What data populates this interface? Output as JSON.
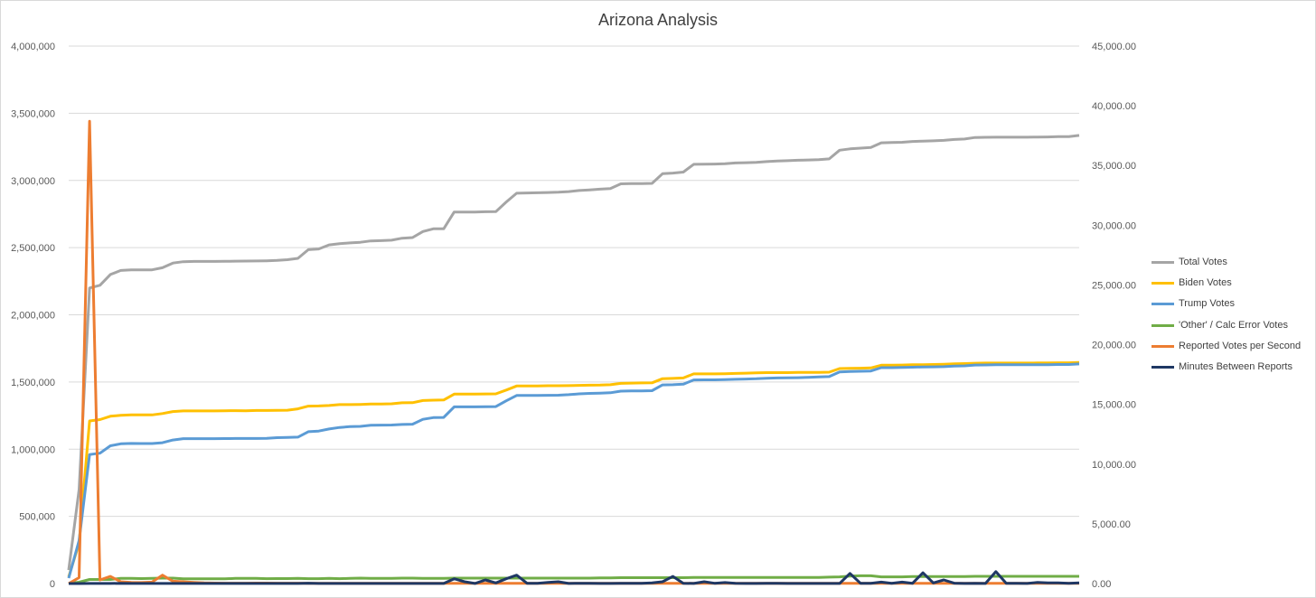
{
  "chart_data": {
    "type": "line",
    "title": "Arizona Analysis",
    "xlabel": "",
    "ylabel": "",
    "y_left": {
      "ylim": [
        0,
        4000000
      ],
      "ticks": [
        "0",
        "500,000",
        "1,000,000",
        "1,500,000",
        "2,000,000",
        "2,500,000",
        "3,000,000",
        "3,500,000",
        "4,000,000"
      ]
    },
    "y_right": {
      "ylim": [
        0,
        45000
      ],
      "ticks": [
        "0.00",
        "5,000.00",
        "10,000.00",
        "15,000.00",
        "20,000.00",
        "25,000.00",
        "30,000.00",
        "35,000.00",
        "40,000.00",
        "45,000.00"
      ]
    },
    "grid": true,
    "legend_position": "right",
    "n_points": 98,
    "series": [
      {
        "name": "Total Votes",
        "axis": "left",
        "color": "#a5a5a5",
        "values": [
          100000,
          700000,
          2200000,
          2220000,
          2300000,
          2330000,
          2335000,
          2335000,
          2335000,
          2350000,
          2385000,
          2395000,
          2397000,
          2397000,
          2397000,
          2398000,
          2399000,
          2400000,
          2401000,
          2402000,
          2405000,
          2410000,
          2420000,
          2485000,
          2490000,
          2520000,
          2530000,
          2535000,
          2540000,
          2550000,
          2552000,
          2555000,
          2570000,
          2575000,
          2620000,
          2640000,
          2640000,
          2765000,
          2765000,
          2765000,
          2767000,
          2768000,
          2840000,
          2905000,
          2907000,
          2908000,
          2910000,
          2912000,
          2917000,
          2925000,
          2930000,
          2935000,
          2940000,
          2975000,
          2976000,
          2977000,
          2978000,
          3050000,
          3055000,
          3062000,
          3120000,
          3121000,
          3122000,
          3125000,
          3130000,
          3132000,
          3135000,
          3140000,
          3145000,
          3147000,
          3150000,
          3152000,
          3155000,
          3160000,
          3225000,
          3235000,
          3240000,
          3245000,
          3280000,
          3282000,
          3284000,
          3290000,
          3292000,
          3295000,
          3298000,
          3305000,
          3308000,
          3320000,
          3321000,
          3322000,
          3322000,
          3322000,
          3322000,
          3323000,
          3324000,
          3326000,
          3326000,
          3335000
        ]
      },
      {
        "name": "Biden Votes",
        "axis": "left",
        "color": "#ffc000",
        "values": [
          50000,
          300000,
          1210000,
          1220000,
          1245000,
          1252000,
          1255000,
          1256000,
          1255000,
          1265000,
          1280000,
          1285000,
          1285000,
          1285000,
          1285000,
          1286000,
          1287000,
          1286000,
          1288000,
          1288000,
          1289000,
          1290000,
          1300000,
          1320000,
          1322000,
          1325000,
          1332000,
          1332000,
          1333000,
          1336000,
          1336000,
          1338000,
          1345000,
          1346000,
          1362000,
          1365000,
          1366000,
          1410000,
          1410000,
          1410000,
          1411000,
          1412000,
          1440000,
          1470000,
          1471000,
          1471000,
          1472000,
          1472000,
          1473000,
          1475000,
          1476000,
          1477000,
          1480000,
          1490000,
          1492000,
          1493000,
          1494000,
          1525000,
          1527000,
          1530000,
          1560000,
          1560000,
          1560000,
          1562000,
          1564000,
          1566000,
          1568000,
          1570000,
          1570000,
          1570000,
          1571000,
          1571000,
          1572000,
          1573000,
          1600000,
          1602000,
          1603000,
          1605000,
          1625000,
          1625000,
          1626000,
          1628000,
          1629000,
          1630000,
          1632000,
          1635000,
          1637000,
          1640000,
          1641000,
          1641000,
          1641000,
          1641000,
          1641000,
          1642000,
          1642000,
          1643000,
          1643000,
          1645000
        ]
      },
      {
        "name": "Trump Votes",
        "axis": "left",
        "color": "#5b9bd5",
        "values": [
          40000,
          320000,
          960000,
          970000,
          1025000,
          1040000,
          1043000,
          1042000,
          1042000,
          1048000,
          1068000,
          1078000,
          1078000,
          1078000,
          1078000,
          1079000,
          1080000,
          1080000,
          1080000,
          1081000,
          1086000,
          1088000,
          1090000,
          1130000,
          1135000,
          1150000,
          1162000,
          1168000,
          1170000,
          1178000,
          1179000,
          1180000,
          1184000,
          1186000,
          1222000,
          1235000,
          1236000,
          1315000,
          1315000,
          1315000,
          1316000,
          1317000,
          1360000,
          1400000,
          1400000,
          1400000,
          1401000,
          1402000,
          1406000,
          1412000,
          1415000,
          1417000,
          1420000,
          1432000,
          1433000,
          1434000,
          1435000,
          1478000,
          1480000,
          1484000,
          1515000,
          1516000,
          1516000,
          1518000,
          1520000,
          1522000,
          1524000,
          1528000,
          1530000,
          1531000,
          1532000,
          1535000,
          1538000,
          1540000,
          1575000,
          1578000,
          1580000,
          1582000,
          1607000,
          1607000,
          1608000,
          1610000,
          1612000,
          1613000,
          1614000,
          1618000,
          1620000,
          1626000,
          1627000,
          1628000,
          1628000,
          1628000,
          1628000,
          1628000,
          1629000,
          1630000,
          1630000,
          1634000
        ]
      },
      {
        "name": "'Other' / Calc Error Votes",
        "axis": "left",
        "color": "#70ad47",
        "values": [
          0,
          10000,
          30000,
          30000,
          30000,
          38000,
          38000,
          37000,
          38000,
          40000,
          40000,
          35000,
          35000,
          35000,
          35000,
          35000,
          38000,
          38000,
          38000,
          36000,
          37000,
          37000,
          38000,
          36000,
          36000,
          38000,
          36000,
          38000,
          40000,
          38000,
          38000,
          38000,
          40000,
          40000,
          38000,
          38000,
          38000,
          40000,
          40000,
          40000,
          40000,
          40000,
          40000,
          40000,
          40000,
          40000,
          40000,
          40000,
          40000,
          40000,
          40000,
          42000,
          42000,
          44000,
          44000,
          44000,
          44000,
          44000,
          44000,
          44000,
          45000,
          45000,
          45000,
          45000,
          45000,
          45000,
          45000,
          45000,
          45000,
          45000,
          45000,
          45000,
          45000,
          48000,
          50000,
          55000,
          58000,
          58000,
          50000,
          50000,
          50000,
          52000,
          52000,
          52000,
          52000,
          52000,
          52000,
          54000,
          54000,
          54000,
          54000,
          54000,
          54000,
          54000,
          54000,
          54000,
          54000,
          54000
        ]
      },
      {
        "name": "Reported Votes per Second",
        "axis": "right",
        "color": "#ed7d31",
        "values": [
          0,
          500,
          38700,
          300,
          600,
          150,
          100,
          80,
          120,
          700,
          200,
          150,
          100,
          50,
          40,
          30,
          30,
          30,
          40,
          40,
          30,
          30,
          30,
          20,
          20,
          20,
          20,
          20,
          20,
          20,
          20,
          20,
          20,
          20,
          20,
          20,
          20,
          20,
          20,
          20,
          20,
          20,
          20,
          20,
          20,
          20,
          20,
          20,
          20,
          20,
          20,
          20,
          20,
          20,
          20,
          20,
          20,
          20,
          20,
          20,
          20,
          20,
          20,
          20,
          20,
          20,
          20,
          20,
          20,
          20,
          20,
          20,
          20,
          20,
          20,
          20,
          20,
          20,
          20,
          20,
          20,
          20,
          20,
          20,
          20,
          20,
          20,
          20,
          20,
          20,
          20,
          20,
          20,
          20,
          20,
          20,
          20,
          20
        ]
      },
      {
        "name": "Minutes Between Reports",
        "axis": "right",
        "color": "#1f3864",
        "values": [
          0,
          0,
          10,
          10,
          10,
          20,
          10,
          10,
          10,
          10,
          10,
          10,
          10,
          10,
          10,
          10,
          10,
          10,
          10,
          10,
          10,
          10,
          10,
          30,
          10,
          10,
          10,
          10,
          10,
          10,
          10,
          10,
          10,
          10,
          10,
          10,
          10,
          400,
          150,
          10,
          300,
          50,
          400,
          700,
          20,
          20,
          100,
          150,
          10,
          20,
          20,
          10,
          10,
          20,
          20,
          20,
          50,
          150,
          600,
          20,
          10,
          150,
          20,
          80,
          20,
          10,
          10,
          20,
          20,
          10,
          10,
          10,
          10,
          10,
          10,
          850,
          20,
          20,
          120,
          20,
          120,
          20,
          900,
          50,
          300,
          30,
          10,
          20,
          10,
          1000,
          20,
          20,
          10,
          100,
          60,
          50,
          20,
          50
        ]
      }
    ]
  }
}
